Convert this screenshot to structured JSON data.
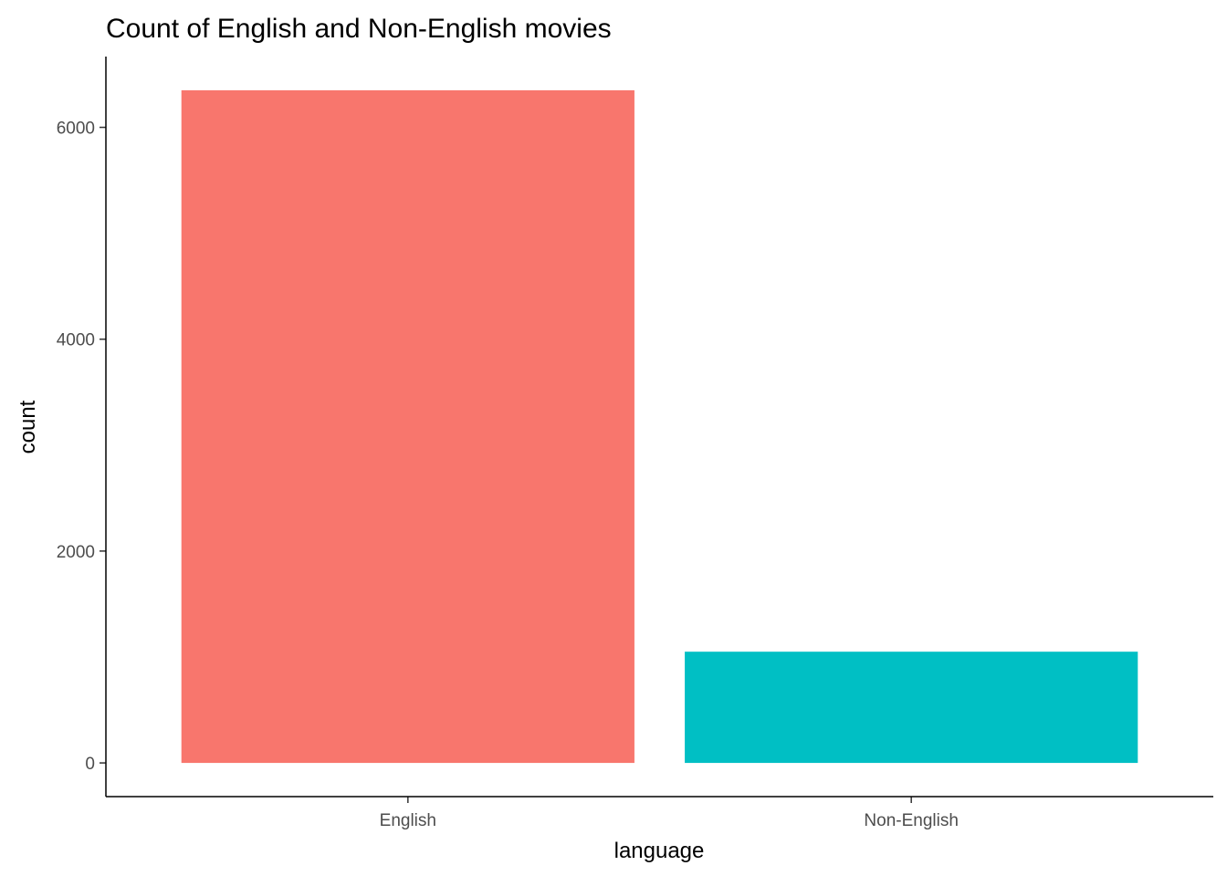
{
  "chart_data": {
    "type": "bar",
    "title": "Count of English and Non-English movies",
    "xlabel": "language",
    "ylabel": "count",
    "categories": [
      "English",
      "Non-English"
    ],
    "values": [
      6350,
      1050
    ],
    "colors": [
      "#F8766D",
      "#00BFC4"
    ],
    "ylim": [
      -318,
      6668
    ],
    "yticks": [
      0,
      2000,
      4000,
      6000
    ],
    "ytick_labels": [
      "0",
      "2000",
      "4000",
      "6000"
    ],
    "grid": false,
    "legend": "none"
  }
}
